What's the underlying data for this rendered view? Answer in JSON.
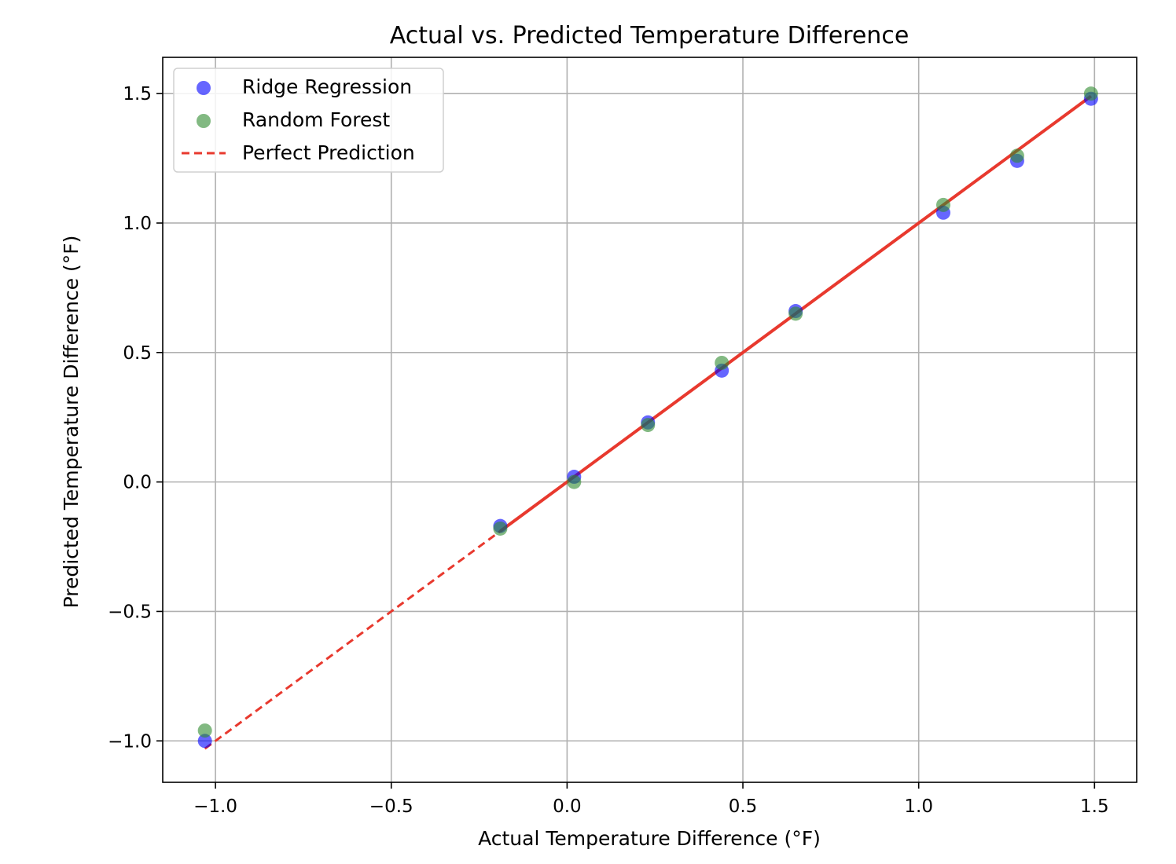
{
  "chart_data": {
    "type": "scatter",
    "title": "Actual vs. Predicted Temperature Difference",
    "xlabel": "Actual Temperature Difference (°F)",
    "ylabel": "Predicted Temperature Difference (°F)",
    "xlim": [
      -1.15,
      1.62
    ],
    "ylim": [
      -1.16,
      1.64
    ],
    "xticks": [
      -1.0,
      -0.5,
      0.0,
      0.5,
      1.0,
      1.5
    ],
    "yticks": [
      -1.0,
      -0.5,
      0.0,
      0.5,
      1.0,
      1.5
    ],
    "xtick_labels": [
      "−1.0",
      "−0.5",
      "0.0",
      "0.5",
      "1.0",
      "1.5"
    ],
    "ytick_labels": [
      "−1.0",
      "−0.5",
      "0.0",
      "0.5",
      "1.0",
      "1.5"
    ],
    "grid": true,
    "legend_position": "top-left",
    "series": [
      {
        "name": "Ridge Regression",
        "color": "#0000ff",
        "marker": "circle",
        "x": [
          -1.03,
          -0.19,
          0.02,
          0.23,
          0.44,
          0.65,
          1.07,
          1.28,
          1.49
        ],
        "y": [
          -1.0,
          -0.17,
          0.02,
          0.23,
          0.43,
          0.66,
          1.04,
          1.24,
          1.48
        ]
      },
      {
        "name": "Random Forest",
        "color": "#2e8b2e",
        "marker": "circle",
        "x": [
          -1.03,
          -0.19,
          0.02,
          0.23,
          0.44,
          0.65,
          1.07,
          1.28,
          1.49
        ],
        "y": [
          -0.96,
          -0.18,
          0.0,
          0.22,
          0.46,
          0.65,
          1.07,
          1.26,
          1.5
        ]
      },
      {
        "name": "Perfect Prediction",
        "color": "#e8392e",
        "line_style": "dashed",
        "x": [
          -1.03,
          1.49
        ],
        "y": [
          -1.03,
          1.49
        ]
      }
    ]
  }
}
